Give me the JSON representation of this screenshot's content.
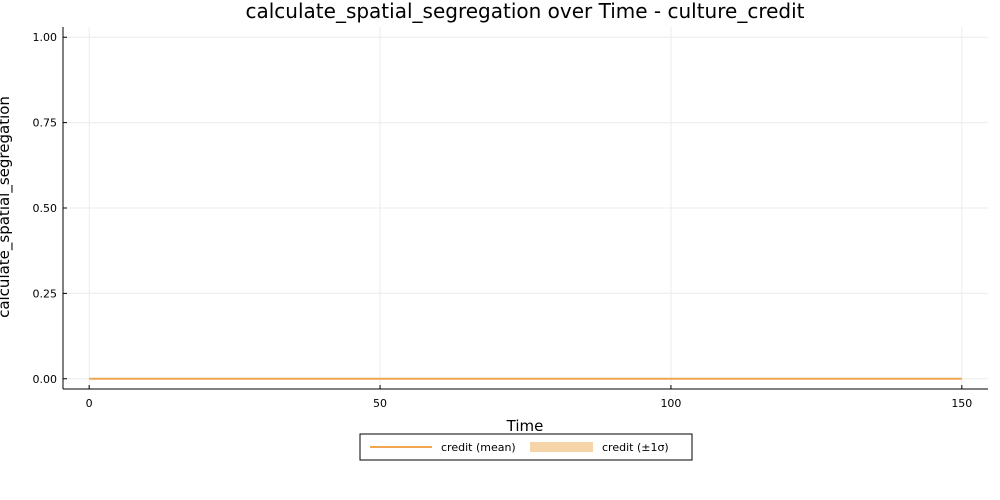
{
  "chart_data": {
    "type": "line",
    "title": "calculate_spatial_segregation over Time - culture_credit",
    "xlabel": "Time",
    "ylabel": "calculate_spatial_segregation",
    "xlim": [
      -4.5,
      154.5
    ],
    "ylim": [
      -0.03,
      1.03
    ],
    "xticks": [
      0,
      50,
      100,
      150
    ],
    "xtick_labels": [
      "0",
      "50",
      "100",
      "150"
    ],
    "yticks": [
      0,
      0.25,
      0.5,
      0.75,
      1
    ],
    "ytick_labels": [
      "0.00",
      "0.25",
      "0.50",
      "0.75",
      "1.00"
    ],
    "grid": true,
    "legend_position": "bottom-center",
    "series": [
      {
        "name": "credit (mean)",
        "color": "#f0a550",
        "x": [
          0,
          150
        ],
        "y": [
          0,
          0
        ]
      }
    ],
    "bands": [
      {
        "name": "credit (±1σ)",
        "color": "#f5d5a8",
        "x": [
          0,
          150
        ],
        "lower": [
          0,
          0
        ],
        "upper": [
          0,
          0
        ]
      }
    ]
  }
}
